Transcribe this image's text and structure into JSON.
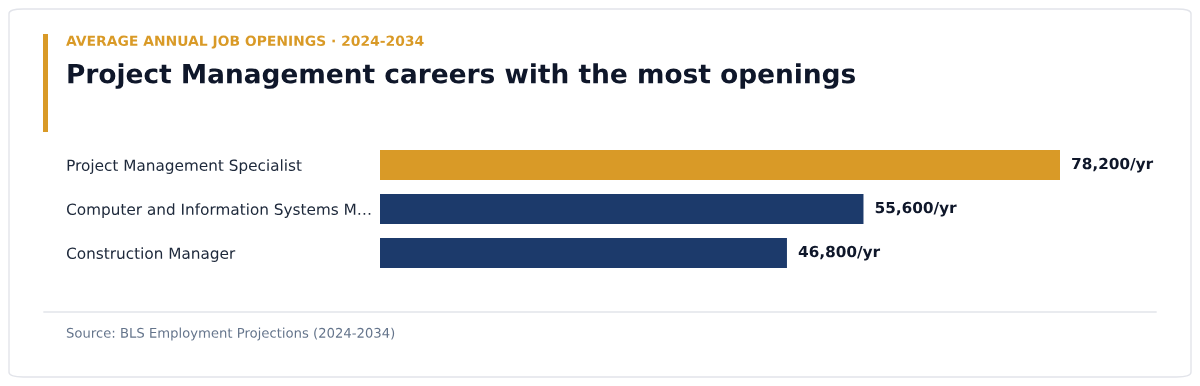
{
  "chart_data": {
    "type": "bar",
    "orientation": "horizontal",
    "subtitle": "AVERAGE ANNUAL JOB OPENINGS · 2024-2034",
    "title": "Project Management careers with the most openings",
    "categories": [
      "Project Management Specialist",
      "Computer and Information Systems M…",
      "Construction Manager"
    ],
    "values": [
      78200,
      55600,
      46800
    ],
    "colors": [
      "#d99a27",
      "#1c3a6b",
      "#1c3a6b"
    ],
    "value_labels": [
      "78,200/yr",
      "55,600/yr",
      "46,800/yr"
    ],
    "xlim": [
      0,
      78200
    ],
    "tick_labels": "y",
    "annotations": [
      "Source: BLS Employment Projections (2024-2034)"
    ]
  }
}
